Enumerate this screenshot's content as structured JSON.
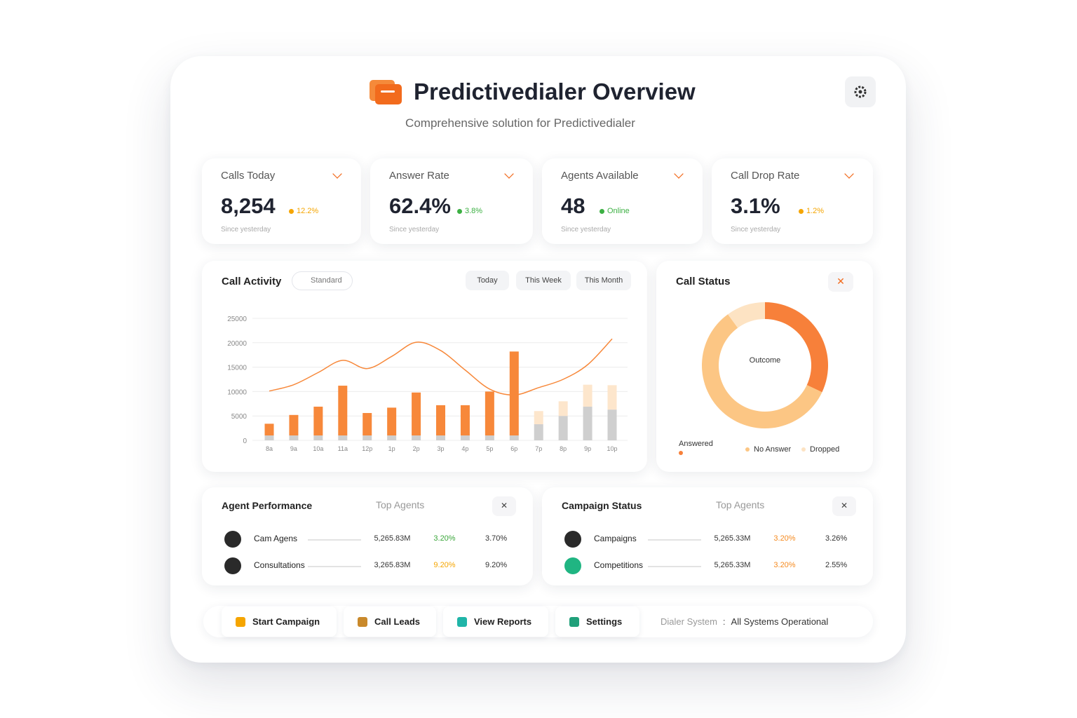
{
  "header": {
    "title": "Predictivedialer Overview",
    "subtitle": "Comprehensive solution for Predictivedialer"
  },
  "kpis": [
    {
      "label": "Calls Today",
      "value": "8,254",
      "delta": "12.2%",
      "delta_color": "#f5a500",
      "note": "Since yesterday"
    },
    {
      "label": "Answer Rate",
      "value": "62.4%",
      "delta": "3.8%",
      "delta_color": "#3cb043",
      "note": "Since yesterday"
    },
    {
      "label": "Agents Available",
      "value": "48",
      "delta": "Online",
      "delta_color": "#3cb043",
      "note": "Since yesterday"
    },
    {
      "label": "Call Drop Rate",
      "value": "3.1%",
      "delta": "1.2%",
      "delta_color": "#f5a500",
      "note": "Since yesterday"
    }
  ],
  "activity": {
    "filter": "Standard",
    "ranges": [
      "Today",
      "This Week",
      "This Month"
    ]
  },
  "chart_data": [
    {
      "type": "bar",
      "title": "Call Activity",
      "categories": [
        "8a",
        "9a",
        "10a",
        "11a",
        "12p",
        "1p",
        "2p",
        "3p",
        "4p",
        "5p",
        "6p",
        "7p",
        "8p",
        "9p",
        "10p"
      ],
      "series": [
        {
          "color": "#cfcfcf",
          "values": [
            1000,
            1000,
            1000,
            1000,
            1000,
            1000,
            1000,
            1000,
            1000,
            1000,
            1000,
            3300,
            5000,
            6900,
            6300
          ]
        },
        {
          "color": "#f7883a",
          "values": [
            2400,
            4200,
            5900,
            10200,
            4600,
            5700,
            8800,
            6200,
            6200,
            9000,
            17200,
            null,
            null,
            null,
            null
          ]
        },
        {
          "color": "#fde6cc",
          "values": [
            null,
            null,
            null,
            null,
            null,
            null,
            null,
            null,
            null,
            null,
            null,
            2700,
            3000,
            4500,
            5000
          ]
        },
        {
          "type": "line",
          "color": "#f7883a",
          "values": [
            10100,
            11400,
            13900,
            16400,
            14700,
            17200,
            20100,
            18400,
            14400,
            10500,
            9300,
            10800,
            12500,
            15500,
            20800
          ]
        }
      ],
      "ylim": [
        0,
        25000
      ],
      "yticks": [
        0,
        5000,
        10000,
        15000,
        20000,
        25000
      ],
      "grid": true
    },
    {
      "type": "pie",
      "title": "Call Status",
      "center_label": "Outcome",
      "categories": [
        "Answered",
        "No Answer",
        "Dropped"
      ],
      "values": [
        32,
        58,
        10
      ],
      "colors": [
        "#f7803a",
        "#fcc684",
        "#fde3c3"
      ]
    }
  ],
  "agent_panel": {
    "title": "Agent Performance",
    "filter": "Top Agents",
    "rows": [
      {
        "name": "Cam Agens",
        "amount": "5,265.83M",
        "change": "3.20%",
        "change_color": "#3aa63a",
        "share": "3.70%"
      },
      {
        "name": "Consultations",
        "amount": "3,265.83M",
        "change": "9.20%",
        "change_color": "#f5a500",
        "share": "9.20%"
      }
    ]
  },
  "campaign_panel": {
    "title": "Campaign Status",
    "filter": "Top Agents",
    "rows": [
      {
        "name": "Campaigns",
        "amount": "5,265.33M",
        "change": "3.20%",
        "change_color": "#f58a1f",
        "share": "3.26%"
      },
      {
        "name": "Competitions",
        "amount": "5,265.33M",
        "change": "3.20%",
        "change_color": "#f58a1f",
        "share": "2.55%"
      }
    ]
  },
  "actions": [
    "Start Campaign",
    "Call Leads",
    "View Reports",
    "Settings"
  ],
  "status": {
    "label": "Dialer System",
    "separator": ":",
    "value": "All Systems Operational"
  }
}
